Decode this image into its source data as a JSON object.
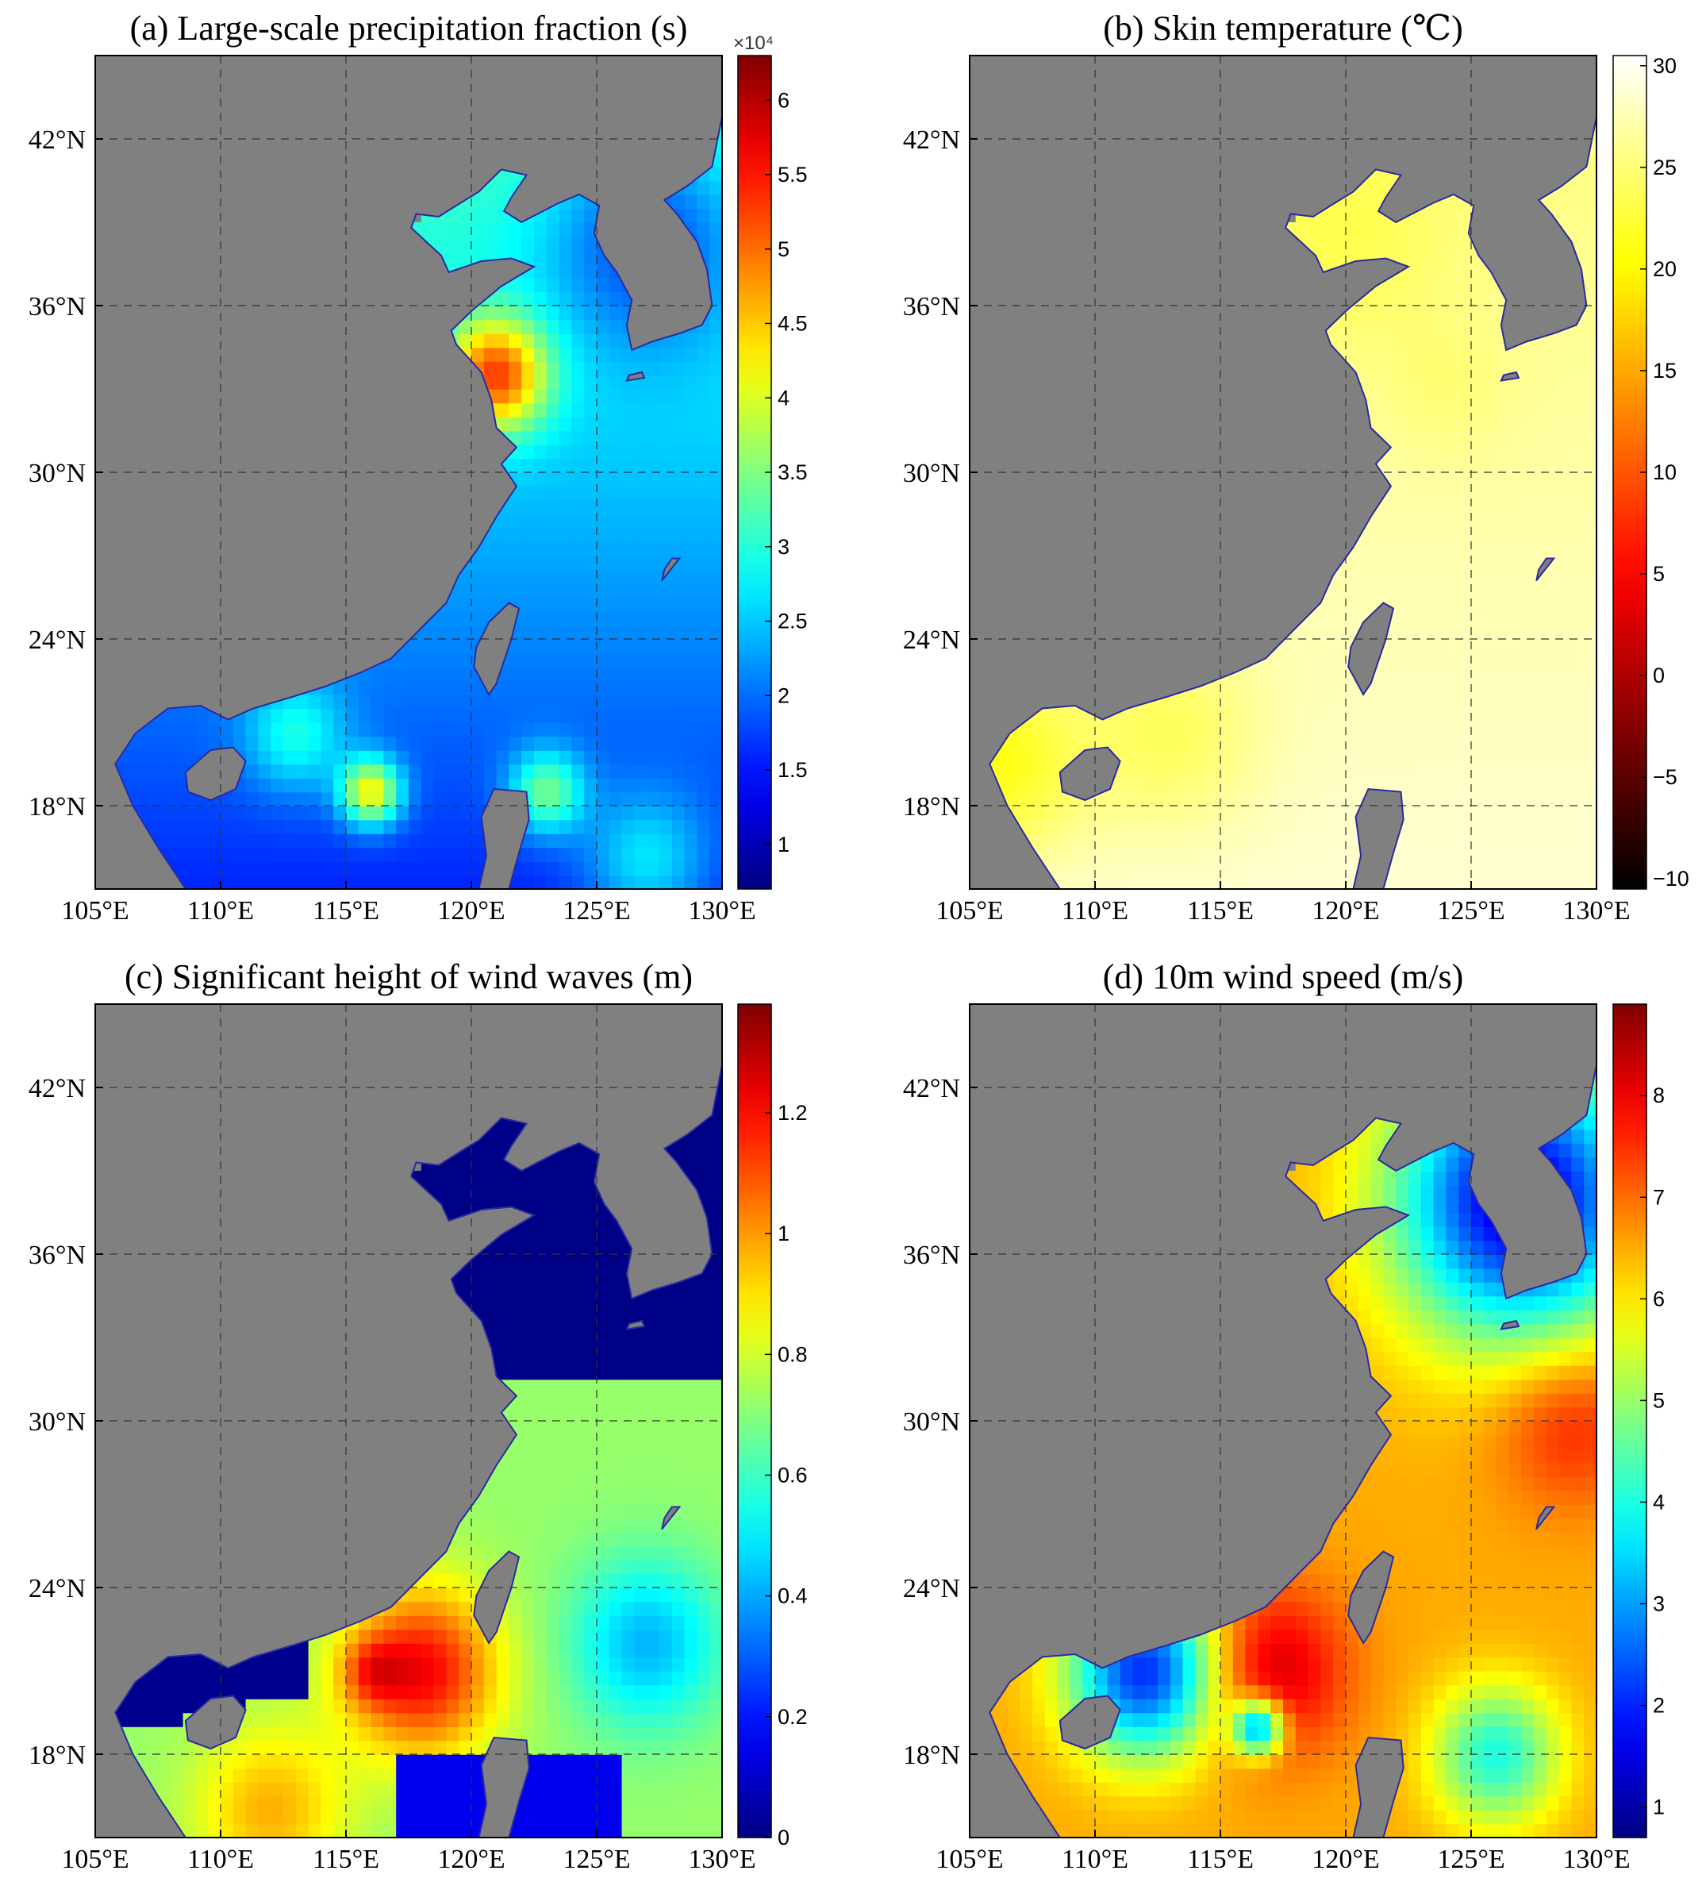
{
  "figure": {
    "background": "#ffffff",
    "land_color": "#808080",
    "coast_color": "#2a2aa0"
  },
  "chart_data": [
    {
      "type": "heatmap",
      "panel": "a",
      "title": "(a) Large-scale precipitation fraction (s)",
      "xticklabels": [
        "105°E",
        "110°E",
        "115°E",
        "120°E",
        "125°E",
        "130°E"
      ],
      "yticklabels": [
        "18°N",
        "24°N",
        "30°N",
        "36°N",
        "42°N"
      ],
      "xlim": [
        105,
        130
      ],
      "ylim": [
        15,
        45
      ],
      "xticks": [
        105,
        110,
        115,
        120,
        125,
        130
      ],
      "yticks": [
        18,
        24,
        30,
        36,
        42
      ],
      "grid": true,
      "colormap": "jet",
      "colorbar": {
        "min": 0.7,
        "max": 6.3,
        "ticks": [
          "1",
          "1.5",
          "2",
          "2.5",
          "3",
          "3.5",
          "4",
          "4.5",
          "5",
          "5.5",
          "6"
        ],
        "tick_values": [
          1,
          1.5,
          2,
          2.5,
          3,
          3.5,
          4,
          4.5,
          5,
          5.5,
          6
        ],
        "multiplier": "×10⁴"
      },
      "field": {
        "base": 2.2,
        "gradient_n": 0.06,
        "features": [
          {
            "lon": 121,
            "lat": 33.5,
            "r": 2.0,
            "v": 2.6
          },
          {
            "lon": 116,
            "lat": 18.5,
            "r": 1.2,
            "v": 2.4
          },
          {
            "lon": 123,
            "lat": 18.5,
            "r": 1.5,
            "v": 1.6
          },
          {
            "lon": 113,
            "lat": 20.5,
            "r": 2.0,
            "v": 1.0
          },
          {
            "lon": 127,
            "lat": 38.5,
            "r": 4.0,
            "v": -1.2
          },
          {
            "lon": 127,
            "lat": 16,
            "r": 2.5,
            "v": 1.0
          }
        ]
      }
    },
    {
      "type": "heatmap",
      "panel": "b",
      "title": "(b) Skin temperature (℃)",
      "xticklabels": [
        "105°E",
        "110°E",
        "115°E",
        "120°E",
        "125°E",
        "130°E"
      ],
      "yticklabels": [
        "18°N",
        "24°N",
        "30°N",
        "36°N",
        "42°N"
      ],
      "xlim": [
        105,
        130
      ],
      "ylim": [
        15,
        45
      ],
      "xticks": [
        105,
        110,
        115,
        120,
        125,
        130
      ],
      "yticks": [
        18,
        24,
        30,
        36,
        42
      ],
      "grid": true,
      "colormap": "hot",
      "colorbar": {
        "min": -10.5,
        "max": 30.5,
        "ticks": [
          "−10",
          "−5",
          "0",
          "5",
          "10",
          "15",
          "20",
          "25",
          "30"
        ],
        "tick_values": [
          -10,
          -5,
          0,
          5,
          10,
          15,
          20,
          25,
          30
        ]
      },
      "field": {
        "base": 27.5,
        "gradient_n": -0.12,
        "features": [
          {
            "lon": 106,
            "lat": 19.5,
            "r": 3.5,
            "v": -7.0
          },
          {
            "lon": 113,
            "lat": 20.5,
            "r": 3.5,
            "v": -4.0
          },
          {
            "lon": 120,
            "lat": 38.5,
            "r": 4.0,
            "v": -2.5
          },
          {
            "lon": 124,
            "lat": 33,
            "r": 2.5,
            "v": -1.5
          }
        ]
      }
    },
    {
      "type": "heatmap",
      "panel": "c",
      "title": "(c) Significant height of wind waves (m)",
      "xticklabels": [
        "105°E",
        "110°E",
        "115°E",
        "120°E",
        "125°E",
        "130°E"
      ],
      "yticklabels": [
        "18°N",
        "24°N",
        "30°N",
        "36°N",
        "42°N"
      ],
      "xlim": [
        105,
        130
      ],
      "ylim": [
        15,
        45
      ],
      "xticks": [
        105,
        110,
        115,
        120,
        125,
        130
      ],
      "yticks": [
        18,
        24,
        30,
        36,
        42
      ],
      "grid": true,
      "colormap": "jet",
      "colorbar": {
        "min": 0,
        "max": 1.38,
        "ticks": [
          "0",
          "0.2",
          "0.4",
          "0.6",
          "0.8",
          "1",
          "1.2"
        ],
        "tick_values": [
          0,
          0.2,
          0.4,
          0.6,
          0.8,
          1,
          1.2
        ]
      },
      "field": {
        "base": 0.72,
        "gradient_n": 0,
        "features": [
          {
            "lon": 118,
            "lat": 21,
            "r": 3.0,
            "v": 0.5
          },
          {
            "lon": 116,
            "lat": 21,
            "r": 1.2,
            "v": 0.2
          },
          {
            "lon": 112,
            "lat": 16,
            "r": 3.0,
            "v": 0.25
          },
          {
            "lon": 127,
            "lat": 22,
            "r": 3.0,
            "v": -0.3
          }
        ]
      },
      "zero_mask": {
        "north_of": 31.5,
        "southwest_lat": 18.2,
        "southwest_lon": 117
      }
    },
    {
      "type": "heatmap",
      "panel": "d",
      "title": "(d) 10m wind speed (m/s)",
      "xticklabels": [
        "105°E",
        "110°E",
        "115°E",
        "120°E",
        "125°E",
        "130°E"
      ],
      "yticklabels": [
        "18°N",
        "24°N",
        "30°N",
        "36°N",
        "42°N"
      ],
      "xlim": [
        105,
        130
      ],
      "ylim": [
        15,
        45
      ],
      "xticks": [
        105,
        110,
        115,
        120,
        125,
        130
      ],
      "yticks": [
        18,
        24,
        30,
        36,
        42
      ],
      "grid": true,
      "colormap": "jet",
      "colorbar": {
        "min": 0.7,
        "max": 8.9,
        "ticks": [
          "1",
          "2",
          "3",
          "4",
          "5",
          "6",
          "7",
          "8"
        ],
        "tick_values": [
          1,
          2,
          3,
          4,
          5,
          6,
          7,
          8
        ]
      },
      "field": {
        "base": 6.5,
        "gradient_n": 0,
        "features": [
          {
            "lon": 117,
            "lat": 21,
            "r": 3.0,
            "v": 1.8
          },
          {
            "lon": 129,
            "lat": 30,
            "r": 3.0,
            "v": 1.2
          },
          {
            "lon": 127,
            "lat": 38,
            "r": 5.0,
            "v": -5.2
          },
          {
            "lon": 112,
            "lat": 21,
            "r": 3.0,
            "v": -4.5
          },
          {
            "lon": 116.5,
            "lat": 19,
            "r": 1.0,
            "v": -4.0
          },
          {
            "lon": 126,
            "lat": 18,
            "r": 2.5,
            "v": -2.5
          }
        ]
      }
    }
  ]
}
